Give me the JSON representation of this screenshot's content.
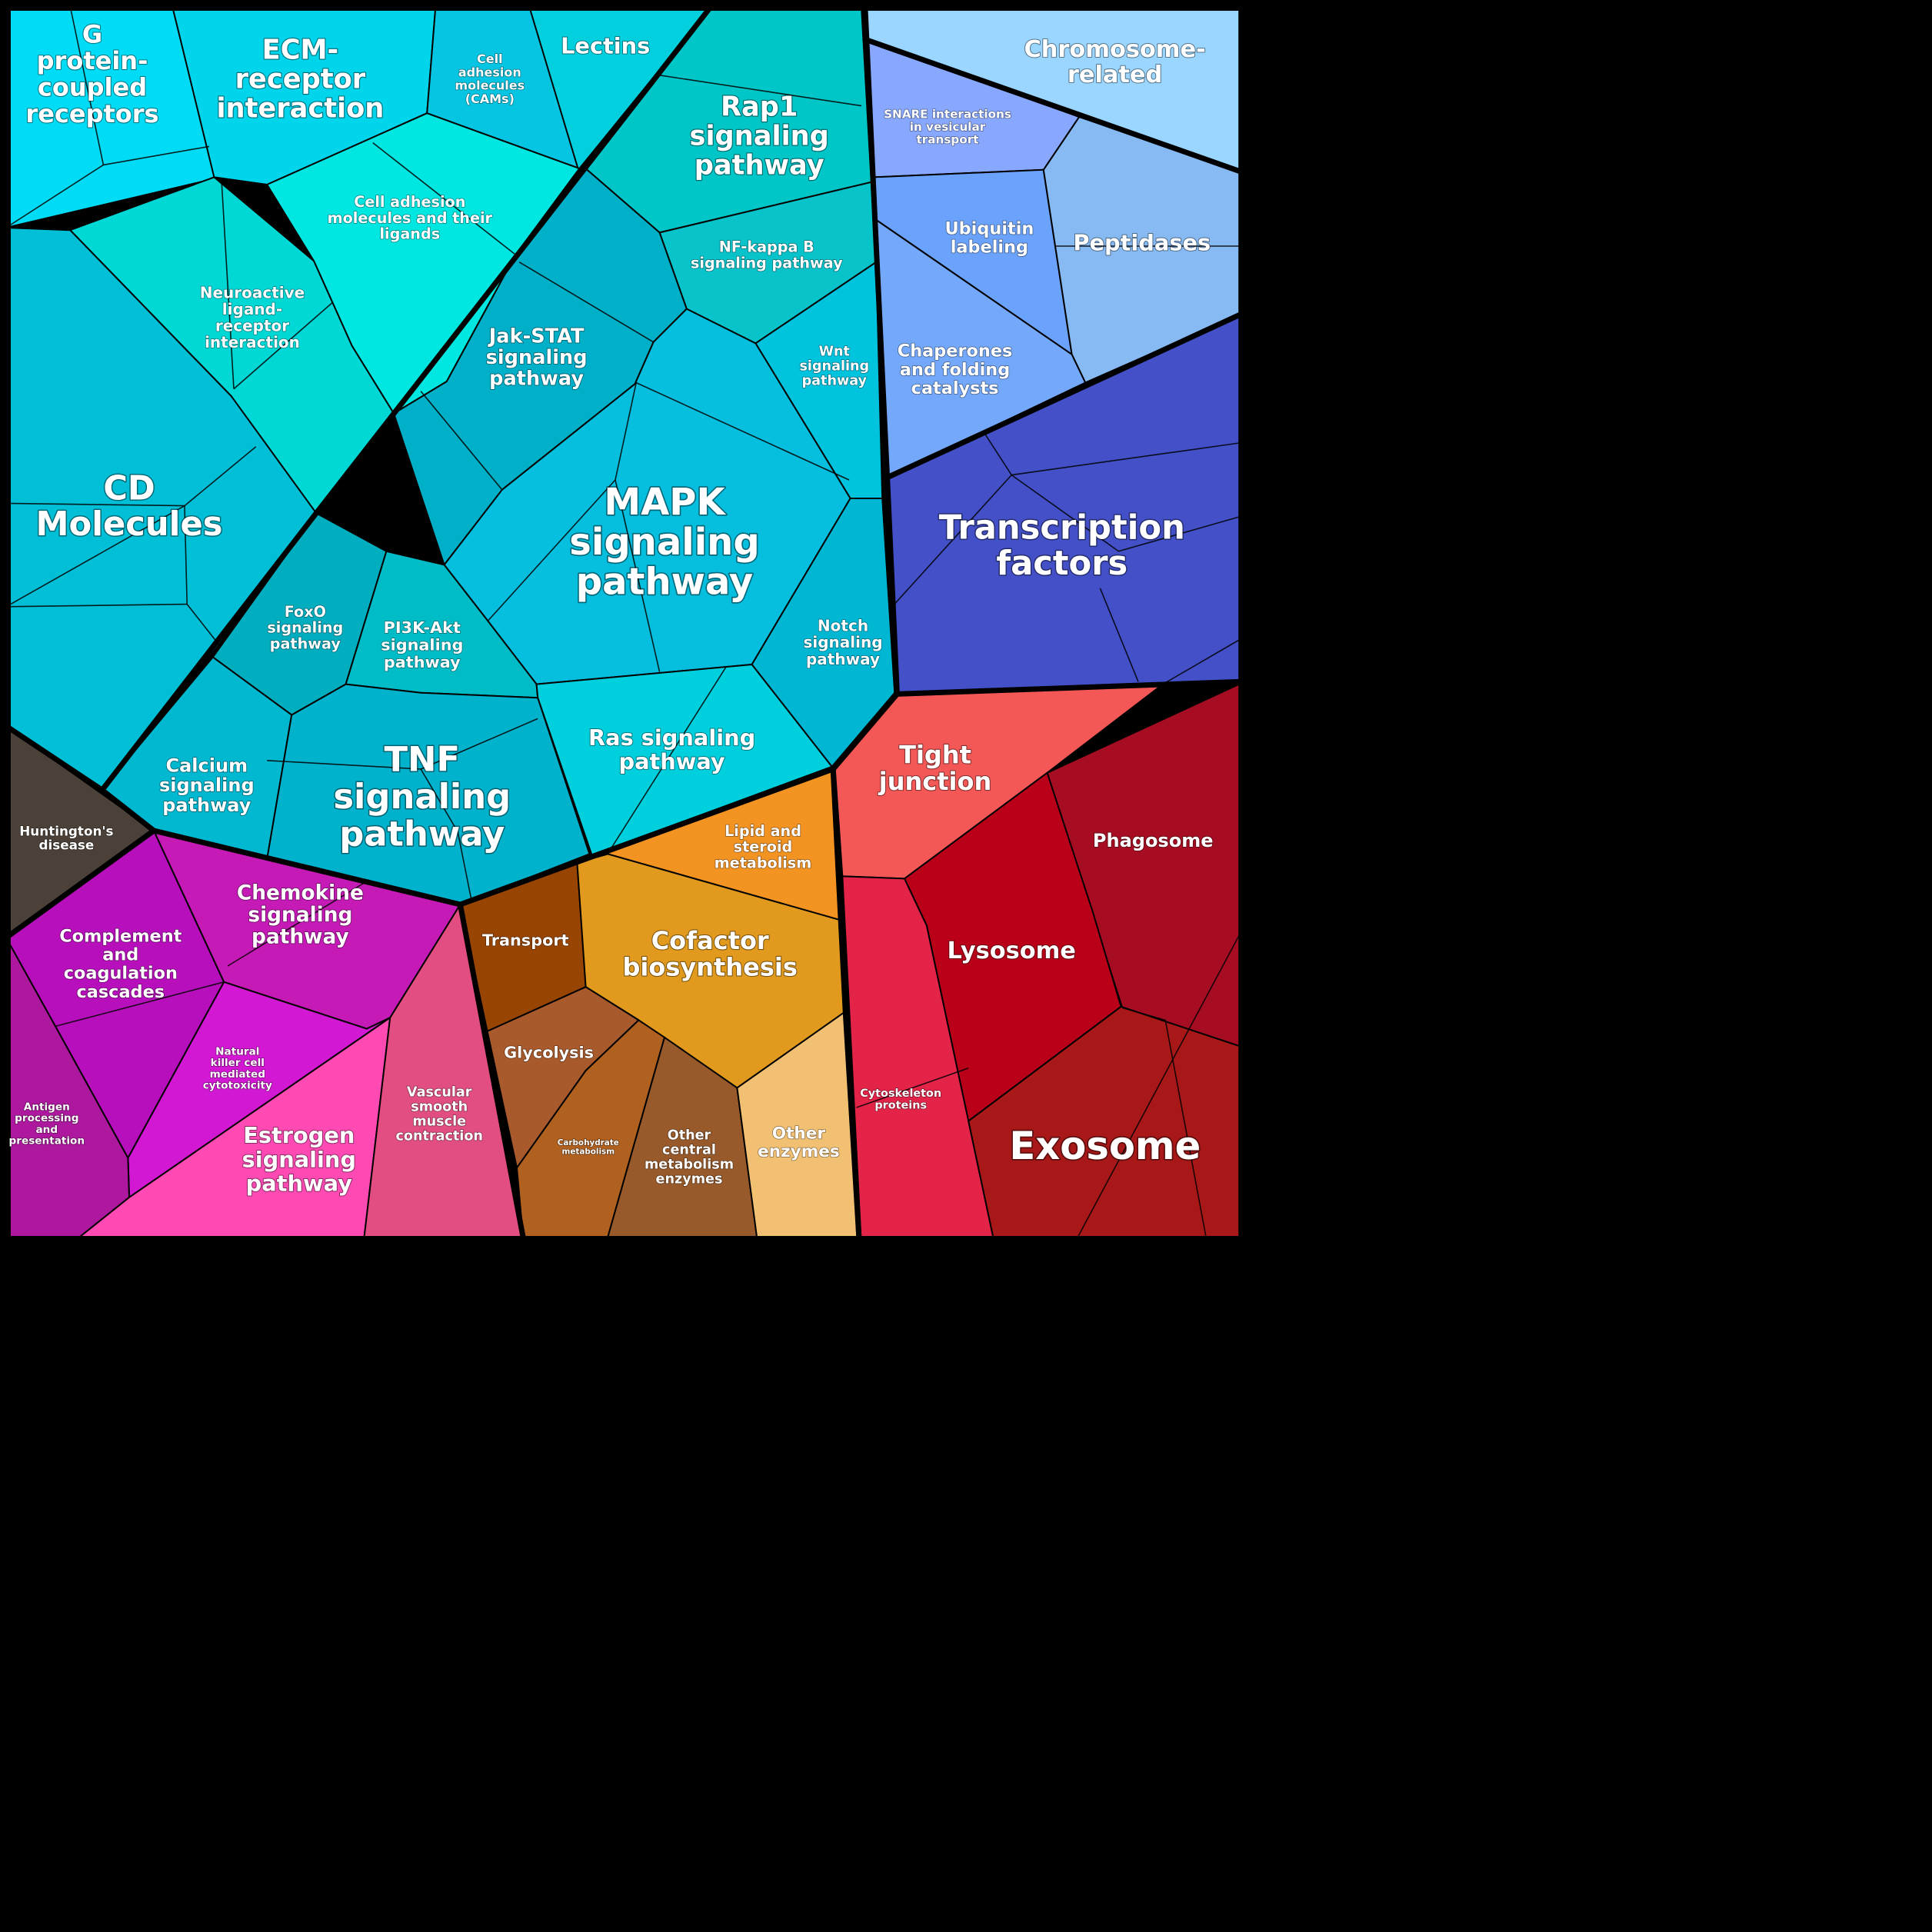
{
  "regions": [
    {
      "id": "g-protein",
      "lines": [
        "G",
        "protein-",
        "coupled",
        "receptors"
      ],
      "color": "#00dcf5"
    },
    {
      "id": "ecm",
      "lines": [
        "ECM-",
        "receptor",
        "interaction"
      ],
      "color": "#00d5ec"
    },
    {
      "id": "cams",
      "lines": [
        "Cell",
        "adhesion",
        "molecules",
        "(CAMs)"
      ],
      "color": "#06c5e2"
    },
    {
      "id": "lectins",
      "lines": [
        "Lectins"
      ],
      "color": "#02d0de"
    },
    {
      "id": "cell-adhesion-ligands",
      "lines": [
        "Cell adhesion",
        "molecules and their",
        "ligands"
      ],
      "color": "#00e6e0"
    },
    {
      "id": "neuroactive",
      "lines": [
        "Neuroactive",
        "ligand-",
        "receptor",
        "interaction"
      ],
      "color": "#00d8d6"
    },
    {
      "id": "cd",
      "lines": [
        "CD",
        "Molecules"
      ],
      "color": "#00bfd6"
    },
    {
      "id": "rap1",
      "lines": [
        "Rap1",
        "signaling",
        "pathway"
      ],
      "color": "#00c6c8"
    },
    {
      "id": "nfkb",
      "lines": [
        "NF-kappa B",
        "signaling pathway"
      ],
      "color": "#08c3ca"
    },
    {
      "id": "jak",
      "lines": [
        "Jak-STAT",
        "signaling",
        "pathway"
      ],
      "color": "#00b0c8"
    },
    {
      "id": "wnt",
      "lines": [
        "Wnt",
        "signaling",
        "pathway"
      ],
      "color": "#00c3de"
    },
    {
      "id": "mapk",
      "lines": [
        "MAPK",
        "signaling",
        "pathway"
      ],
      "color": "#06bfdf"
    },
    {
      "id": "notch",
      "lines": [
        "Notch",
        "signaling",
        "pathway"
      ],
      "color": "#00b7d3"
    },
    {
      "id": "foxo",
      "lines": [
        "FoxO",
        "signaling",
        "pathway"
      ],
      "color": "#00aec0"
    },
    {
      "id": "pi3k",
      "lines": [
        "PI3K-Akt",
        "signaling",
        "pathway"
      ],
      "color": "#00bcc6"
    },
    {
      "id": "calcium",
      "lines": [
        "Calcium",
        "signaling",
        "pathway"
      ],
      "color": "#00b8d0"
    },
    {
      "id": "tnf",
      "lines": [
        "TNF",
        "signaling",
        "pathway"
      ],
      "color": "#00b2cc"
    },
    {
      "id": "ras",
      "lines": [
        "Ras signaling",
        "pathway"
      ],
      "color": "#00d0de"
    },
    {
      "id": "chromosome",
      "lines": [
        "Chromosome-",
        "related"
      ],
      "color": "#9ad6ff"
    },
    {
      "id": "snare",
      "lines": [
        "SNARE interactions",
        "in vesicular",
        "transport"
      ],
      "color": "#88a8ff"
    },
    {
      "id": "ubiquitin",
      "lines": [
        "Ubiquitin",
        "labeling"
      ],
      "color": "#6aa2fc"
    },
    {
      "id": "peptidases",
      "lines": [
        "Peptidases"
      ],
      "color": "#87baf3"
    },
    {
      "id": "chaperones",
      "lines": [
        "Chaperones",
        "and folding",
        "catalysts"
      ],
      "color": "#73a8fa"
    },
    {
      "id": "transcription",
      "lines": [
        "Transcription",
        "factors"
      ],
      "color": "#4350c8"
    },
    {
      "id": "huntington",
      "lines": [
        "Huntington's",
        "disease"
      ],
      "color": "#4b4138"
    },
    {
      "id": "complement",
      "lines": [
        "Complement",
        "and",
        "coagulation",
        "cascades"
      ],
      "color": "#b60fbb"
    },
    {
      "id": "chemokine",
      "lines": [
        "Chemokine",
        "signaling",
        "pathway"
      ],
      "color": "#c61ab6"
    },
    {
      "id": "nk",
      "lines": [
        "Natural",
        "killer cell",
        "mediated",
        "cytotoxicity"
      ],
      "color": "#d218d2"
    },
    {
      "id": "antigen",
      "lines": [
        "Antigen",
        "processing",
        "and",
        "presentation"
      ],
      "color": "#ae189f"
    },
    {
      "id": "estrogen",
      "lines": [
        "Estrogen",
        "signaling",
        "pathway"
      ],
      "color": "#ff4ab4"
    },
    {
      "id": "vascular",
      "lines": [
        "Vascular",
        "smooth",
        "muscle",
        "contraction"
      ],
      "color": "#e24e82"
    },
    {
      "id": "transport",
      "lines": [
        "Transport"
      ],
      "color": "#984402"
    },
    {
      "id": "lipid",
      "lines": [
        "Lipid and",
        "steroid",
        "metabolism"
      ],
      "color": "#f39322"
    },
    {
      "id": "cofactor",
      "lines": [
        "Cofactor",
        "biosynthesis"
      ],
      "color": "#e19a1d"
    },
    {
      "id": "glycolysis",
      "lines": [
        "Glycolysis"
      ],
      "color": "#a85a2c"
    },
    {
      "id": "carbohydrate",
      "lines": [
        "Carbohydrate",
        "metabolism"
      ],
      "color": "#b0601f"
    },
    {
      "id": "other-central",
      "lines": [
        "Other",
        "central",
        "metabolism",
        "enzymes"
      ],
      "color": "#985a2a"
    },
    {
      "id": "other-enzymes",
      "lines": [
        "Other",
        "enzymes"
      ],
      "color": "#f2c073"
    },
    {
      "id": "tight",
      "lines": [
        "Tight",
        "junction"
      ],
      "color": "#f45856"
    },
    {
      "id": "phagosome",
      "lines": [
        "Phagosome"
      ],
      "color": "#a70d22"
    },
    {
      "id": "lysosome",
      "lines": [
        "Lysosome"
      ],
      "color": "#b90018"
    },
    {
      "id": "cytoskeleton",
      "lines": [
        "Cytoskeleton",
        "proteins"
      ],
      "color": "#e32448"
    },
    {
      "id": "exosome",
      "lines": [
        "Exosome"
      ],
      "color": "#a91818"
    }
  ]
}
